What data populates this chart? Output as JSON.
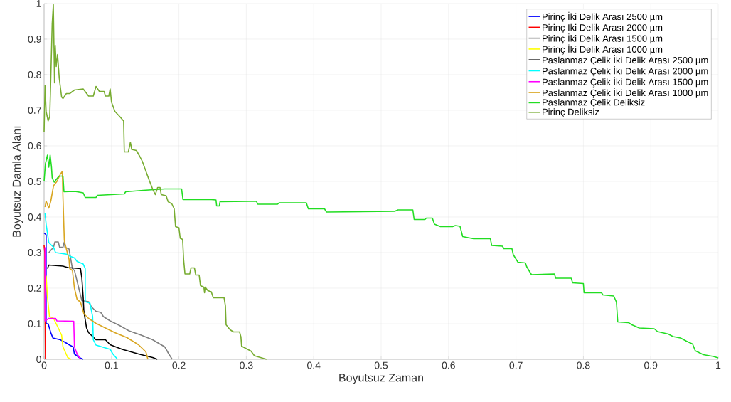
{
  "chart_data": {
    "type": "line",
    "xlabel": "Boyutsuz Zaman",
    "ylabel": "Boyutsuz Damla Alanı",
    "xlim": [
      0,
      1
    ],
    "ylim": [
      0,
      1
    ],
    "xticks": [
      0,
      0.1,
      0.2,
      0.3,
      0.4,
      0.5,
      0.6,
      0.7,
      0.8,
      0.9,
      1
    ],
    "yticks": [
      0,
      0.1,
      0.2,
      0.3,
      0.4,
      0.5,
      0.6,
      0.7,
      0.8,
      0.9,
      1
    ],
    "grid": true,
    "legend": "top right",
    "series": [
      {
        "name": "Pirinç İki Delik Arası 2500 µm",
        "color": "#0000ff",
        "x": [
          0,
          0.003,
          0.003,
          0.006,
          0.01,
          0.013,
          0.024,
          0.031,
          0.038,
          0.043,
          0.045,
          0.052,
          0.058
        ],
        "values": [
          0.355,
          0.35,
          0.1,
          0.1,
          0.075,
          0.06,
          0.055,
          0.048,
          0.04,
          0.035,
          0.015,
          0.005,
          0
        ]
      },
      {
        "name": "Pirinç İki Delik Arası 2000 µm",
        "color": "#ff0000",
        "x": [
          0,
          0.001,
          0.002
        ],
        "values": [
          0.32,
          0.3,
          0
        ]
      },
      {
        "name": "Pirinç İki Delik Arası 1500 µm",
        "color": "#808080",
        "x": [
          0.007,
          0.014,
          0.016,
          0.021,
          0.023,
          0.028,
          0.03,
          0.031,
          0.037,
          0.042,
          0.045,
          0.056,
          0.066,
          0.07,
          0.077,
          0.084,
          0.088,
          0.098,
          0.112,
          0.126,
          0.144,
          0.161,
          0.179,
          0.185,
          0.19
        ],
        "values": [
          0.3,
          0.315,
          0.33,
          0.33,
          0.315,
          0.315,
          0.33,
          0.315,
          0.31,
          0.255,
          0.25,
          0.165,
          0.162,
          0.148,
          0.135,
          0.132,
          0.12,
          0.108,
          0.095,
          0.08,
          0.068,
          0.055,
          0.035,
          0.015,
          0
        ]
      },
      {
        "name": "Pirinç İki Delik Arası 1000 µm",
        "color": "#ffff00",
        "x": [
          0.003,
          0.005,
          0.008,
          0.014,
          0.021,
          0.026,
          0.028,
          0.035,
          0.04
        ],
        "values": [
          0.235,
          0.175,
          0.12,
          0.115,
          0.088,
          0.068,
          0.035,
          0.005,
          0
        ]
      },
      {
        "name": "Paslanmaz Çelik İki Delik Arası 2500 µm",
        "color": "#000000",
        "x": [
          0.005,
          0.007,
          0.028,
          0.035,
          0.054,
          0.056,
          0.058,
          0.059,
          0.063,
          0.066,
          0.077,
          0.091,
          0.098,
          0.116,
          0.14,
          0.161,
          0.168
        ],
        "values": [
          0.255,
          0.265,
          0.262,
          0.258,
          0.255,
          0.228,
          0.175,
          0.135,
          0.088,
          0.075,
          0.055,
          0.055,
          0.041,
          0.028,
          0.015,
          0.005,
          0
        ]
      },
      {
        "name": "Paslanmaz Çelik İki Delik Arası 2000 µm",
        "color": "#00ffff",
        "x": [
          0.0014,
          0.003,
          0.007,
          0.014,
          0.017,
          0.035,
          0.038,
          0.045,
          0.049,
          0.058,
          0.061,
          0.061,
          0.068,
          0.072,
          0.073,
          0.077,
          0.098,
          0.102,
          0.109
        ],
        "values": [
          0.41,
          0.38,
          0.328,
          0.315,
          0.3,
          0.295,
          0.29,
          0.285,
          0.275,
          0.268,
          0.255,
          0.162,
          0.158,
          0.12,
          0.055,
          0.04,
          0.028,
          0.015,
          0
        ]
      },
      {
        "name": "Paslanmaz Çelik İki Delik Arası 1500 µm",
        "color": "#ff00ff",
        "x": [
          0.0014,
          0.0014,
          0.007,
          0.017,
          0.019,
          0.044,
          0.045,
          0.049,
          0.054
        ],
        "values": [
          0.315,
          0.108,
          0.115,
          0.115,
          0.108,
          0.107,
          0.035,
          0.015,
          0
        ]
      },
      {
        "name": "Paslanmaz Çelik İki Delik Arası 1000 µm",
        "color": "#d9a621",
        "x": [
          0.0014,
          0.003,
          0.007,
          0.01,
          0.014,
          0.019,
          0.024,
          0.027,
          0.028,
          0.03,
          0.031,
          0.037,
          0.038,
          0.042,
          0.045,
          0.049,
          0.054,
          0.059,
          0.066,
          0.077,
          0.091,
          0.105,
          0.123,
          0.14,
          0.151,
          0.154
        ],
        "values": [
          0.428,
          0.445,
          0.425,
          0.445,
          0.488,
          0.5,
          0.52,
          0.528,
          0.455,
          0.335,
          0.325,
          0.281,
          0.255,
          0.25,
          0.2,
          0.168,
          0.161,
          0.128,
          0.115,
          0.101,
          0.088,
          0.075,
          0.061,
          0.041,
          0.021,
          0
        ]
      },
      {
        "name": "Paslanmaz Çelik Deliksiz",
        "color": "#22dd22",
        "x": [
          0,
          0.002,
          0.005,
          0.007,
          0.009,
          0.011,
          0.012,
          0.015,
          0.022,
          0.028,
          0.0295,
          0.045,
          0.049,
          0.058,
          0.061,
          0.077,
          0.079,
          0.119,
          0.121,
          0.147,
          0.179,
          0.204,
          0.206,
          0.248,
          0.255,
          0.256,
          0.26,
          0.261,
          0.304,
          0.315,
          0.317,
          0.346,
          0.349,
          0.389,
          0.392,
          0.416,
          0.419,
          0.52,
          0.525,
          0.547,
          0.549,
          0.565,
          0.567,
          0.576,
          0.579,
          0.588,
          0.606,
          0.61,
          0.617,
          0.621,
          0.637,
          0.662,
          0.664,
          0.68,
          0.682,
          0.694,
          0.696,
          0.703,
          0.714,
          0.716,
          0.723,
          0.757,
          0.759,
          0.782,
          0.784,
          0.8,
          0.801,
          0.827,
          0.829,
          0.845,
          0.849,
          0.851,
          0.867,
          0.872,
          0.883,
          0.905,
          0.91,
          0.926,
          0.933,
          0.944,
          0.953,
          0.962,
          0.966,
          0.978,
          0.993,
          1.0
        ],
        "values": [
          0.5,
          0.55,
          0.574,
          0.54,
          0.574,
          0.54,
          0.51,
          0.498,
          0.515,
          0.515,
          0.471,
          0.472,
          0.471,
          0.468,
          0.455,
          0.455,
          0.461,
          0.465,
          0.471,
          0.475,
          0.479,
          0.479,
          0.449,
          0.449,
          0.448,
          0.431,
          0.431,
          0.443,
          0.444,
          0.444,
          0.436,
          0.436,
          0.44,
          0.44,
          0.423,
          0.423,
          0.414,
          0.416,
          0.42,
          0.42,
          0.393,
          0.393,
          0.397,
          0.397,
          0.38,
          0.373,
          0.373,
          0.376,
          0.374,
          0.345,
          0.339,
          0.339,
          0.32,
          0.318,
          0.311,
          0.311,
          0.294,
          0.273,
          0.271,
          0.26,
          0.238,
          0.24,
          0.228,
          0.228,
          0.215,
          0.213,
          0.187,
          0.187,
          0.181,
          0.178,
          0.161,
          0.105,
          0.103,
          0.097,
          0.088,
          0.086,
          0.078,
          0.071,
          0.064,
          0.06,
          0.051,
          0.043,
          0.024,
          0.013,
          0.008,
          0.004
        ]
      },
      {
        "name": "Pirinç Deliksiz",
        "color": "#77ac30",
        "x": [
          0,
          0.0014,
          0.003,
          0.006,
          0.0084,
          0.0095,
          0.012,
          0.0137,
          0.0155,
          0.0165,
          0.018,
          0.02,
          0.0225,
          0.026,
          0.028,
          0.033,
          0.038,
          0.045,
          0.058,
          0.066,
          0.073,
          0.077,
          0.082,
          0.089,
          0.091,
          0.096,
          0.098,
          0.1,
          0.105,
          0.112,
          0.118,
          0.119,
          0.125,
          0.128,
          0.13,
          0.137,
          0.142,
          0.1456,
          0.156,
          0.1614,
          0.165,
          0.1684,
          0.172,
          0.1738,
          0.181,
          0.184,
          0.1895,
          0.193,
          0.195,
          0.2,
          0.202,
          0.2055,
          0.207,
          0.209,
          0.216,
          0.218,
          0.223,
          0.225,
          0.23,
          0.232,
          0.237,
          0.238,
          0.239,
          0.243,
          0.248,
          0.251,
          0.267,
          0.269,
          0.27,
          0.276,
          0.281,
          0.29,
          0.292,
          0.293,
          0.3,
          0.307,
          0.312,
          0.33
        ],
        "values": [
          0.64,
          0.77,
          0.697,
          0.67,
          0.683,
          0.757,
          0.943,
          0.997,
          0.777,
          0.883,
          0.823,
          0.857,
          0.79,
          0.737,
          0.733,
          0.747,
          0.747,
          0.757,
          0.76,
          0.74,
          0.74,
          0.767,
          0.753,
          0.753,
          0.74,
          0.74,
          0.76,
          0.723,
          0.697,
          0.683,
          0.67,
          0.583,
          0.583,
          0.61,
          0.59,
          0.587,
          0.57,
          0.557,
          0.503,
          0.477,
          0.463,
          0.483,
          0.483,
          0.463,
          0.46,
          0.443,
          0.437,
          0.423,
          0.373,
          0.37,
          0.34,
          0.337,
          0.28,
          0.24,
          0.24,
          0.257,
          0.257,
          0.237,
          0.237,
          0.207,
          0.203,
          0.187,
          0.203,
          0.193,
          0.19,
          0.173,
          0.173,
          0.15,
          0.097,
          0.083,
          0.077,
          0.077,
          0.063,
          0.037,
          0.03,
          0.023,
          0.01,
          0
        ]
      }
    ]
  }
}
